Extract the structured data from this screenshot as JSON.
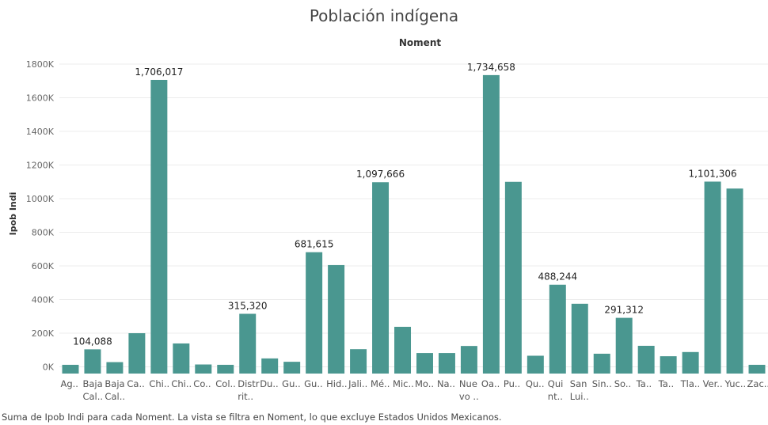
{
  "chart_data": {
    "type": "bar",
    "title": "Población indígena",
    "column_header": "Noment",
    "ylabel": "Ipob Indi",
    "ylim": [
      -40000,
      1880000
    ],
    "y_ticks": [
      0,
      200000,
      400000,
      600000,
      800000,
      1000000,
      1200000,
      1400000,
      1600000,
      1800000
    ],
    "y_tick_labels": [
      "0K",
      "200K",
      "400K",
      "600K",
      "800K",
      "1000K",
      "1200K",
      "1400K",
      "1600K",
      "1800K"
    ],
    "grid": true,
    "bar_color": "#4a9790",
    "categories": [
      [
        "Ag.."
      ],
      [
        "Baja",
        "Cal.."
      ],
      [
        "Baja",
        "Cal.."
      ],
      [
        "Ca.."
      ],
      [
        "Chi.."
      ],
      [
        "Chi.."
      ],
      [
        "Co.."
      ],
      [
        "Col.."
      ],
      [
        "Distr",
        "rit.."
      ],
      [
        "Du.."
      ],
      [
        "Gu.."
      ],
      [
        "Gu.."
      ],
      [
        "Hid.."
      ],
      [
        "Jali.."
      ],
      [
        "Mé.."
      ],
      [
        "Mic.."
      ],
      [
        "Mo.."
      ],
      [
        "Na.."
      ],
      [
        "Nue",
        "vo .."
      ],
      [
        "Oa.."
      ],
      [
        "Pu.."
      ],
      [
        "Qu.."
      ],
      [
        "Qui",
        "nt.."
      ],
      [
        "San",
        "Lui.."
      ],
      [
        "Sin.."
      ],
      [
        "So.."
      ],
      [
        "Ta.."
      ],
      [
        "Ta.."
      ],
      [
        "Tla.."
      ],
      [
        "Ver.."
      ],
      [
        "Yuc.."
      ],
      [
        "Zac.."
      ]
    ],
    "values": [
      12000,
      104088,
      28000,
      200000,
      1706017,
      139000,
      14000,
      12000,
      315320,
      50000,
      30000,
      681615,
      605000,
      105000,
      1097666,
      238000,
      82000,
      82000,
      124000,
      1734658,
      1100000,
      66000,
      488244,
      375000,
      78000,
      291312,
      125000,
      63000,
      88000,
      1101306,
      1060000,
      12000
    ],
    "data_labels": [
      null,
      "104,088",
      null,
      null,
      "1,706,017",
      null,
      null,
      null,
      "315,320",
      null,
      null,
      "681,615",
      null,
      null,
      "1,097,666",
      null,
      null,
      null,
      null,
      "1,734,658",
      null,
      null,
      "488,244",
      null,
      null,
      "291,312",
      null,
      null,
      null,
      "1,101,306",
      null,
      null
    ]
  },
  "caption": "Suma de Ipob Indi para cada Noment. La vista se filtra en Noment, lo que excluye Estados Unidos Mexicanos."
}
